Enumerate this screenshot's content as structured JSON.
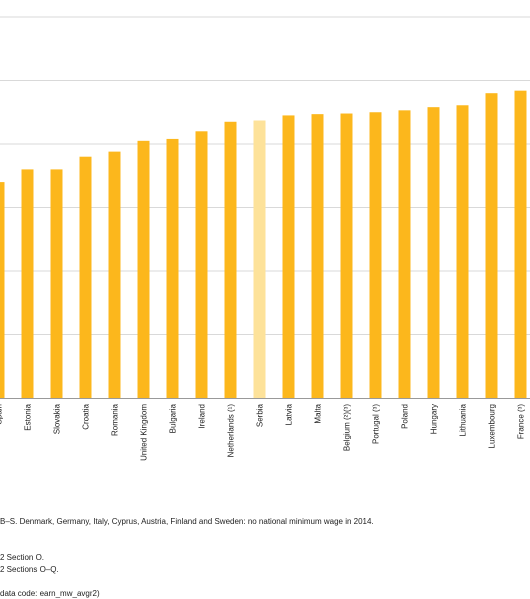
{
  "chart_data": {
    "type": "bar",
    "categories": [
      "Spain",
      "Estonia",
      "Slovakia",
      "Croatia",
      "Romania",
      "United Kingdom",
      "Bulgaria",
      "Ireland",
      "Netherlands (¹)",
      "Serbia",
      "Latvia",
      "Malta",
      "Belgium (²)(³)",
      "Portugal (³)",
      "Poland",
      "Hungary",
      "Lithuania",
      "Luxembourg",
      "France (³)"
    ],
    "values": [
      34,
      36,
      36,
      38,
      38.8,
      40.5,
      40.8,
      42,
      43.5,
      43.7,
      44.5,
      44.7,
      44.8,
      45,
      45.3,
      45.8,
      46.1,
      48,
      48.4
    ],
    "ylim": [
      0,
      60
    ],
    "gridlines": [
      0,
      10,
      20,
      30,
      40,
      50,
      60
    ],
    "grid": true,
    "highlight": "Serbia",
    "colors": {
      "bar": "#fcb71c",
      "highlight": "#fde29a",
      "grid": "#d9d9d9"
    }
  },
  "footnotes": {
    "line1": "B–S. Denmark, Germany, Italy, Cyprus, Austria, Finland and Sweden: no national minimum wage in 2014.",
    "line2": "2 Section O.",
    "line3": "2 Sections O–Q.",
    "source": "data code: earn_mw_avgr2)"
  }
}
